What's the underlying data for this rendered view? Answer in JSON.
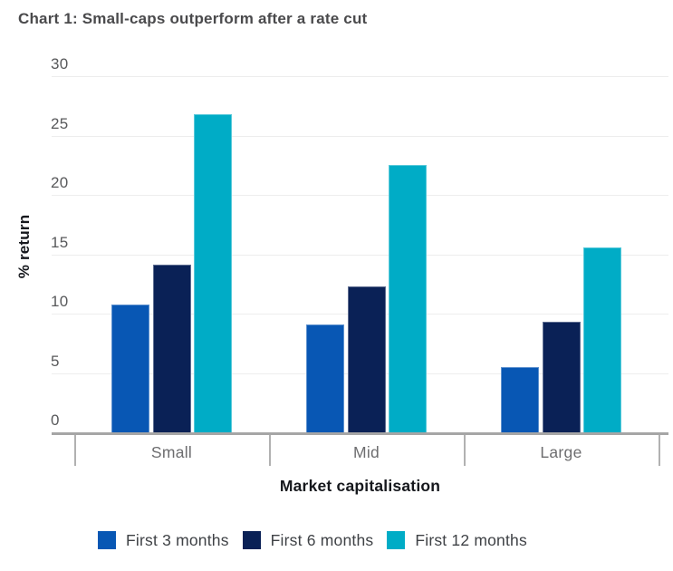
{
  "chart_data": {
    "type": "bar",
    "title": "Chart 1: Small-caps outperform after a rate cut",
    "xlabel": "Market capitalisation",
    "ylabel": "% return",
    "categories": [
      "Small",
      "Mid",
      "Large"
    ],
    "series": [
      {
        "name": "First 3 months",
        "color": "#0857b4",
        "values": [
          10.8,
          9.1,
          5.5
        ]
      },
      {
        "name": "First 6 months",
        "color": "#0a2156",
        "values": [
          14.1,
          12.3,
          9.3
        ]
      },
      {
        "name": "First 12 months",
        "color": "#00acc6",
        "values": [
          26.8,
          22.5,
          15.6
        ]
      }
    ],
    "ylim": [
      0,
      30
    ],
    "yticks": [
      0,
      5,
      10,
      15,
      20,
      25,
      30
    ],
    "grid": true,
    "legend_position": "bottom"
  },
  "colors": {
    "title_text": "#4a4a4c",
    "axis_title_text": "#16181d",
    "tick_label_text": "#58595b",
    "category_label_text": "#6d6d6f",
    "legend_text": "#3f4246",
    "gridline": "#ededed",
    "axis_line": "#a6a6a6",
    "background": "#ffffff"
  }
}
